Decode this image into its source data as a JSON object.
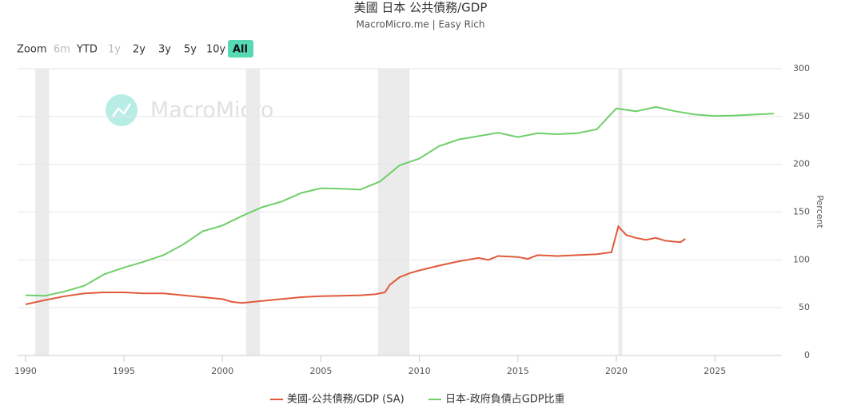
{
  "chart_data": {
    "type": "line",
    "title": "美國 日本 公共債務/GDP",
    "subtitle": "MacroMicro.me | Easy Rich",
    "watermark": "MacroMicro",
    "range_selector": {
      "label": "Zoom",
      "buttons": [
        "6m",
        "YTD",
        "1y",
        "2y",
        "3y",
        "5y",
        "10y",
        "All"
      ],
      "selected_index": 7,
      "disabled_indices": [
        0,
        2
      ]
    },
    "y_axis_label": "Percent",
    "xlim": [
      1989.6,
      2028.4
    ],
    "xticks": [
      1990,
      1995,
      2000,
      2005,
      2010,
      2015,
      2020,
      2025
    ],
    "ylim": [
      0,
      300
    ],
    "yticks": [
      0,
      50,
      100,
      150,
      200,
      250,
      300
    ],
    "grid": true,
    "shaded_ranges": [
      [
        1990.5,
        1991.2
      ],
      [
        2001.2,
        2001.9
      ],
      [
        2007.9,
        2009.5
      ],
      [
        2020.1,
        2020.3
      ]
    ],
    "series": [
      {
        "name": "美國-公共債務/GDP (SA)",
        "color": "#e05a3a",
        "x": [
          1990,
          1991,
          1992,
          1993,
          1994,
          1995,
          1996,
          1997,
          1998,
          1999,
          2000,
          2000.5,
          2001,
          2002,
          2003,
          2004,
          2005,
          2006,
          2007,
          2007.75,
          2008.25,
          2008.5,
          2009,
          2009.5,
          2010,
          2011,
          2012,
          2013,
          2013.5,
          2014,
          2015,
          2015.5,
          2016,
          2017,
          2018,
          2019,
          2019.75,
          2020.1,
          2020.5,
          2021,
          2021.5,
          2022,
          2022.5,
          2023,
          2023.25,
          2023.5
        ],
        "values": [
          53.5,
          58,
          62,
          65,
          66,
          66,
          65,
          65,
          63,
          61,
          59,
          56,
          55,
          57,
          59,
          61,
          62,
          62.5,
          63,
          64,
          66,
          74,
          82,
          86,
          89,
          94,
          98.5,
          102,
          100,
          104,
          103,
          101,
          105,
          104,
          105,
          106,
          108,
          135,
          126,
          123,
          121,
          123,
          120,
          119,
          118.5,
          122
        ]
      },
      {
        "name": "日本-政府負債占GDP比重",
        "color": "#6fcf6a",
        "x": [
          1990,
          1991,
          1992,
          1993,
          1994,
          1995,
          1996,
          1997,
          1998,
          1999,
          2000,
          2001,
          2002,
          2003,
          2004,
          2005,
          2006,
          2007,
          2008,
          2009,
          2010,
          2011,
          2012,
          2013,
          2014,
          2015,
          2016,
          2017,
          2018,
          2019,
          2020,
          2021,
          2022,
          2023,
          2024,
          2025,
          2026,
          2027,
          2028
        ],
        "values": [
          63,
          62.5,
          67,
          73,
          85,
          92,
          98,
          105,
          116,
          130,
          136,
          146,
          155,
          161,
          170,
          175,
          174.5,
          173.5,
          182,
          199,
          206,
          219,
          226,
          229.5,
          233,
          228.5,
          232.5,
          231.5,
          232.5,
          236.5,
          258.5,
          255.5,
          260,
          255.5,
          252,
          250.5,
          251,
          252,
          253
        ]
      }
    ]
  }
}
